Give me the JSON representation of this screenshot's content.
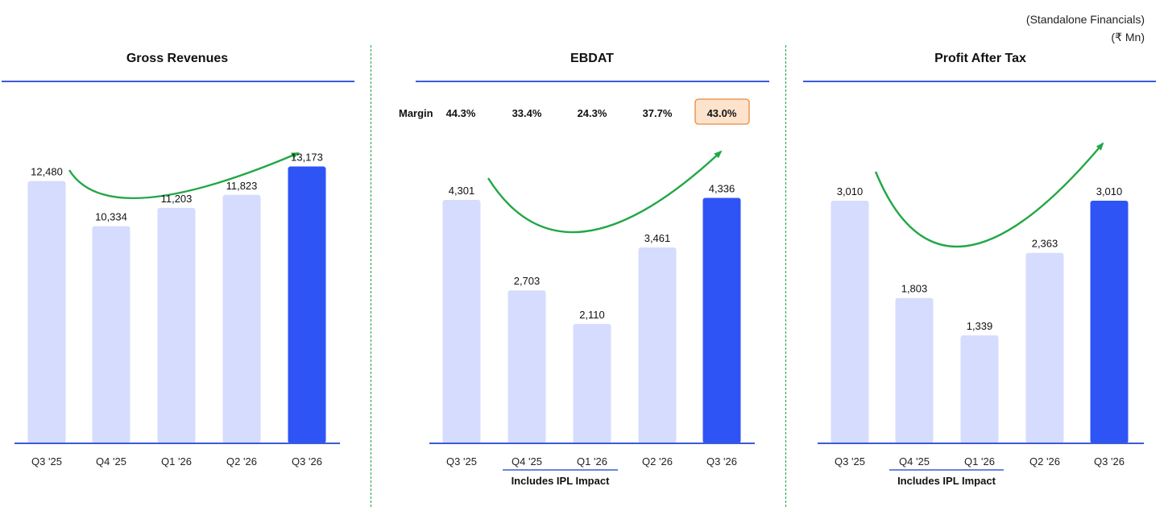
{
  "header": {
    "note_line1": "(Standalone Financials)",
    "note_line2": "(₹ Mn)"
  },
  "colors": {
    "bar_light": "#d6dcfd",
    "bar_highlight": "#2f54f5",
    "trend": "#22a746",
    "rule": "#3a5bd9",
    "divider": "#1e9e4a",
    "margin_highlight_fill": "#fde3cc",
    "margin_highlight_border": "#e8893a"
  },
  "chart_data": [
    {
      "type": "bar",
      "title": "Gross Revenues",
      "categories": [
        "Q3 '25",
        "Q4 '25",
        "Q1 '26",
        "Q2 '26",
        "Q3 '26"
      ],
      "values": [
        12480,
        10334,
        11203,
        11823,
        13173
      ],
      "value_labels": [
        "12,480",
        "10,334",
        "11,203",
        "11,823",
        "13,173"
      ],
      "highlight_index": 4,
      "trend_arrow": true
    },
    {
      "type": "bar",
      "title": "EBDAT",
      "categories": [
        "Q3 '25",
        "Q4 '25",
        "Q1 '26",
        "Q2 '26",
        "Q3 '26"
      ],
      "values": [
        4301,
        2703,
        2110,
        3461,
        4336
      ],
      "value_labels": [
        "4,301",
        "2,703",
        "2,110",
        "3,461",
        "4,336"
      ],
      "highlight_index": 4,
      "trend_arrow": true,
      "margin_label": "Margin",
      "margins": [
        "44.3%",
        "33.4%",
        "24.3%",
        "37.7%",
        "43.0%"
      ],
      "margin_highlight_index": 4,
      "bracket_label": "Includes IPL Impact",
      "bracket_categories": [
        1,
        2
      ]
    },
    {
      "type": "bar",
      "title": "Profit After Tax",
      "categories": [
        "Q3 '25",
        "Q4 '25",
        "Q1 '26",
        "Q2 '26",
        "Q3 '26"
      ],
      "values": [
        3010,
        1803,
        1339,
        2363,
        3010
      ],
      "value_labels": [
        "3,010",
        "1,803",
        "1,339",
        "2,363",
        "3,010"
      ],
      "highlight_index": 4,
      "trend_arrow": true,
      "bracket_label": "Includes IPL Impact",
      "bracket_categories": [
        1,
        2
      ]
    }
  ]
}
